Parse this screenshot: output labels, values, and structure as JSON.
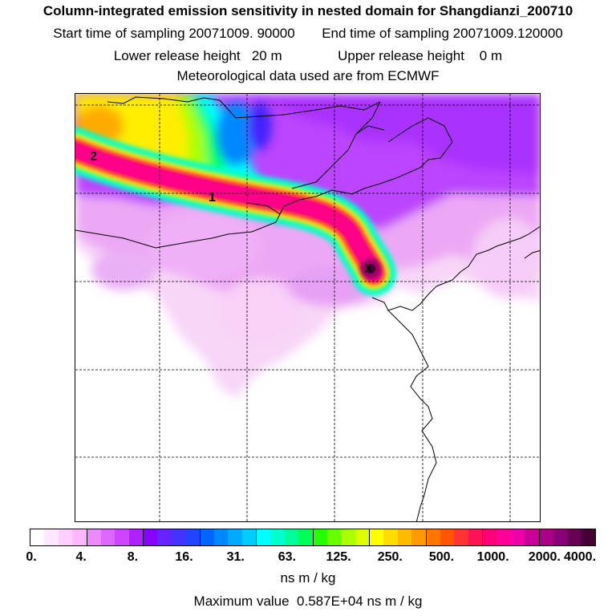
{
  "header": {
    "title": "Column-integrated emission sensitivity in nested domain for Shangdianzi_200710",
    "start_label": "Start time of sampling 20071009. 90000",
    "end_label": "End time of sampling 20071009.120000",
    "lower_label": "Lower release height   20 m",
    "upper_label": "Upper release height    0 m",
    "met_label": "Meteorological data used are from ECMWF"
  },
  "map": {
    "plume_labels": [
      "2",
      "1"
    ],
    "station_marker": "X"
  },
  "colorbar": {
    "colors": [
      "#ffffff",
      "#ffe8ff",
      "#ffd0ff",
      "#ffb8ff",
      "#ee88ff",
      "#dd66ff",
      "#cc44ff",
      "#aa22ff",
      "#8800ff",
      "#6622ff",
      "#4433ff",
      "#2244ff",
      "#0066ff",
      "#0088ff",
      "#00aaff",
      "#00ccff",
      "#00ffff",
      "#00ffcc",
      "#00ff99",
      "#00ff55",
      "#22ff00",
      "#66ff00",
      "#aaff00",
      "#ddff00",
      "#ffff00",
      "#ffdd00",
      "#ffbb00",
      "#ff9900",
      "#ff7700",
      "#ff5500",
      "#ff3333",
      "#ff1155",
      "#ff0077",
      "#ff0099",
      "#ee00aa",
      "#cc0099",
      "#aa0088",
      "#880077",
      "#660055",
      "#440033"
    ],
    "tick_labels": [
      "0.",
      "4.",
      "8.",
      "16.",
      "31.",
      "63.",
      "125.",
      "250.",
      "500.",
      "1000.",
      "2000.",
      "4000."
    ],
    "units": "ns m / kg"
  },
  "footer": {
    "max_value": "Maximum value  0.587E+04 ns m / kg"
  }
}
